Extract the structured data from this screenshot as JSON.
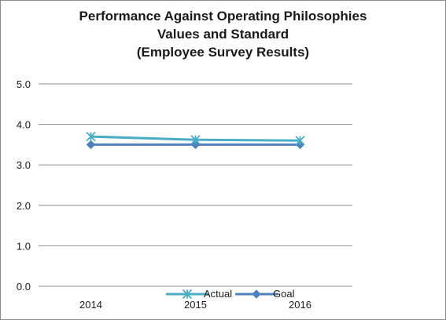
{
  "chart_data": {
    "type": "line",
    "title_lines": [
      "Performance Against Operating Philosophies",
      "Values and Standard",
      "(Employee Survey Results)"
    ],
    "categories": [
      "2014",
      "2015",
      "2016"
    ],
    "series": [
      {
        "name": "Actual",
        "values": [
          3.7,
          3.62,
          3.6
        ],
        "color": "#4bacc6",
        "marker": "asterisk"
      },
      {
        "name": "Goal",
        "values": [
          3.5,
          3.5,
          3.5
        ],
        "color": "#4f81bd",
        "marker": "diamond"
      }
    ],
    "ylim": [
      0,
      5
    ],
    "yticks": [
      "0.0",
      "1.0",
      "2.0",
      "3.0",
      "4.0",
      "5.0"
    ],
    "grid": true,
    "legend": "bottom"
  }
}
